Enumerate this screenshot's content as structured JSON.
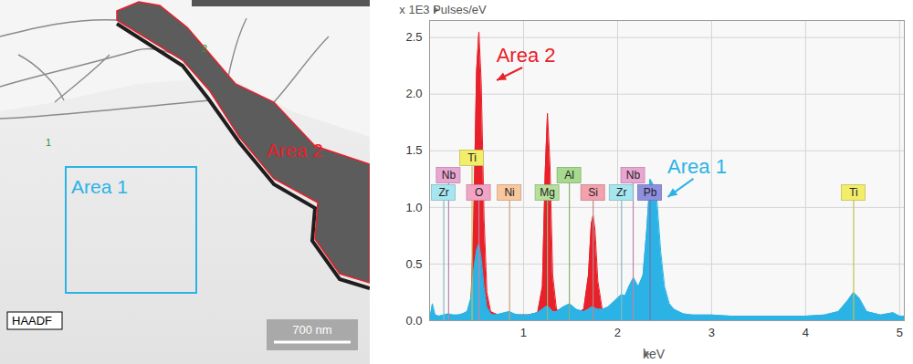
{
  "chart_data": {
    "type": "area",
    "x_label": "keV",
    "y_label": "x 1E3 Pulses/eV",
    "x": [
      0,
      0.03,
      0.06,
      0.1,
      0.15,
      0.2,
      0.25,
      0.3,
      0.35,
      0.4,
      0.44,
      0.47,
      0.5,
      0.525,
      0.55,
      0.58,
      0.61,
      0.65,
      0.7,
      0.75,
      0.8,
      0.85,
      0.9,
      0.95,
      1.0,
      1.05,
      1.1,
      1.15,
      1.2,
      1.23,
      1.254,
      1.28,
      1.31,
      1.35,
      1.42,
      1.49,
      1.56,
      1.64,
      1.69,
      1.72,
      1.74,
      1.76,
      1.79,
      1.84,
      1.9,
      1.95,
      2.0,
      2.04,
      2.08,
      2.12,
      2.17,
      2.22,
      2.27,
      2.31,
      2.345,
      2.38,
      2.42,
      2.46,
      2.5,
      2.55,
      2.6,
      2.65,
      2.7,
      2.8,
      3.0,
      3.2,
      3.4,
      3.6,
      3.8,
      4.0,
      4.2,
      4.35,
      4.45,
      4.51,
      4.57,
      4.65,
      4.8,
      4.93,
      5.0,
      5.05
    ],
    "series": [
      {
        "name": "Area 2",
        "color": "#e8202a",
        "values": [
          0.0,
          0.02,
          0.03,
          0.03,
          0.03,
          0.03,
          0.03,
          0.03,
          0.04,
          0.05,
          0.15,
          0.9,
          2.2,
          2.55,
          2.1,
          0.9,
          0.25,
          0.08,
          0.06,
          0.05,
          0.05,
          0.05,
          0.05,
          0.05,
          0.05,
          0.05,
          0.06,
          0.07,
          0.3,
          1.3,
          1.83,
          1.4,
          0.4,
          0.1,
          0.06,
          0.08,
          0.06,
          0.1,
          0.4,
          0.85,
          0.93,
          0.8,
          0.35,
          0.08,
          0.05,
          0.05,
          0.04,
          0.04,
          0.04,
          0.04,
          0.04,
          0.04,
          0.04,
          0.04,
          0.04,
          0.04,
          0.04,
          0.03,
          0.03,
          0.03,
          0.03,
          0.03,
          0.03,
          0.03,
          0.03,
          0.03,
          0.02,
          0.02,
          0.02,
          0.02,
          0.02,
          0.02,
          0.02,
          0.02,
          0.02,
          0.02,
          0.02,
          0.02,
          0.02,
          0.02
        ]
      },
      {
        "name": "Area 1",
        "color": "#2bb3e6",
        "values": [
          0.0,
          0.15,
          0.05,
          0.04,
          0.05,
          0.06,
          0.05,
          0.05,
          0.06,
          0.08,
          0.2,
          0.45,
          0.62,
          0.68,
          0.55,
          0.3,
          0.12,
          0.06,
          0.05,
          0.06,
          0.07,
          0.08,
          0.06,
          0.05,
          0.05,
          0.05,
          0.06,
          0.07,
          0.1,
          0.12,
          0.13,
          0.11,
          0.08,
          0.08,
          0.12,
          0.15,
          0.1,
          0.08,
          0.1,
          0.12,
          0.12,
          0.11,
          0.1,
          0.1,
          0.12,
          0.16,
          0.2,
          0.23,
          0.22,
          0.3,
          0.38,
          0.3,
          0.4,
          0.8,
          1.25,
          1.2,
          1.05,
          0.6,
          0.3,
          0.15,
          0.1,
          0.08,
          0.06,
          0.05,
          0.05,
          0.04,
          0.04,
          0.04,
          0.04,
          0.04,
          0.05,
          0.08,
          0.18,
          0.25,
          0.2,
          0.08,
          0.05,
          0.07,
          0.04,
          0.04
        ]
      }
    ],
    "xlim": [
      0,
      5.05
    ],
    "xticks": [
      1,
      2,
      3,
      4,
      5
    ],
    "ylim": [
      0,
      2.65
    ],
    "yticks": [
      {
        "value": 0,
        "label": "0.0"
      },
      0.5,
      {
        "value": 1,
        "label": "1.0"
      },
      1.5,
      {
        "value": 2,
        "label": "2.0"
      },
      2.5
    ],
    "grid": true,
    "markers": [
      {
        "label": "Zr",
        "x": 0.151,
        "color": "#a6e6f0"
      },
      {
        "label": "O",
        "x": 0.525,
        "color": "#f3a3c4"
      },
      {
        "label": "Ni",
        "x": 0.851,
        "color": "#f9c79e"
      },
      {
        "label": "Mg",
        "x": 1.254,
        "color": "#b5df9b"
      },
      {
        "label": "Si",
        "x": 1.74,
        "color": "#f2a1ad"
      },
      {
        "label": "Zr",
        "x": 2.042,
        "color": "#a6e6f0"
      },
      {
        "label": "Pb",
        "x": 2.346,
        "color": "#8f8fe0"
      },
      {
        "label": "Ti",
        "x": 4.511,
        "color": "#f2ee6a"
      },
      {
        "label": "Nb",
        "x": 0.203,
        "color": "#e9a6d2"
      },
      {
        "label": "Al",
        "x": 1.487,
        "color": "#a6da8e"
      },
      {
        "label": "Nb",
        "x": 2.166,
        "color": "#e9a6d2"
      },
      {
        "label": "Ti",
        "x": 0.452,
        "color": "#f2ee6a"
      }
    ]
  },
  "micrograph": {
    "areas": [
      "Area 1",
      "Area 2"
    ],
    "points": [
      "1",
      "2"
    ],
    "detector": "HAADF",
    "scale_bar": "700 nm"
  }
}
